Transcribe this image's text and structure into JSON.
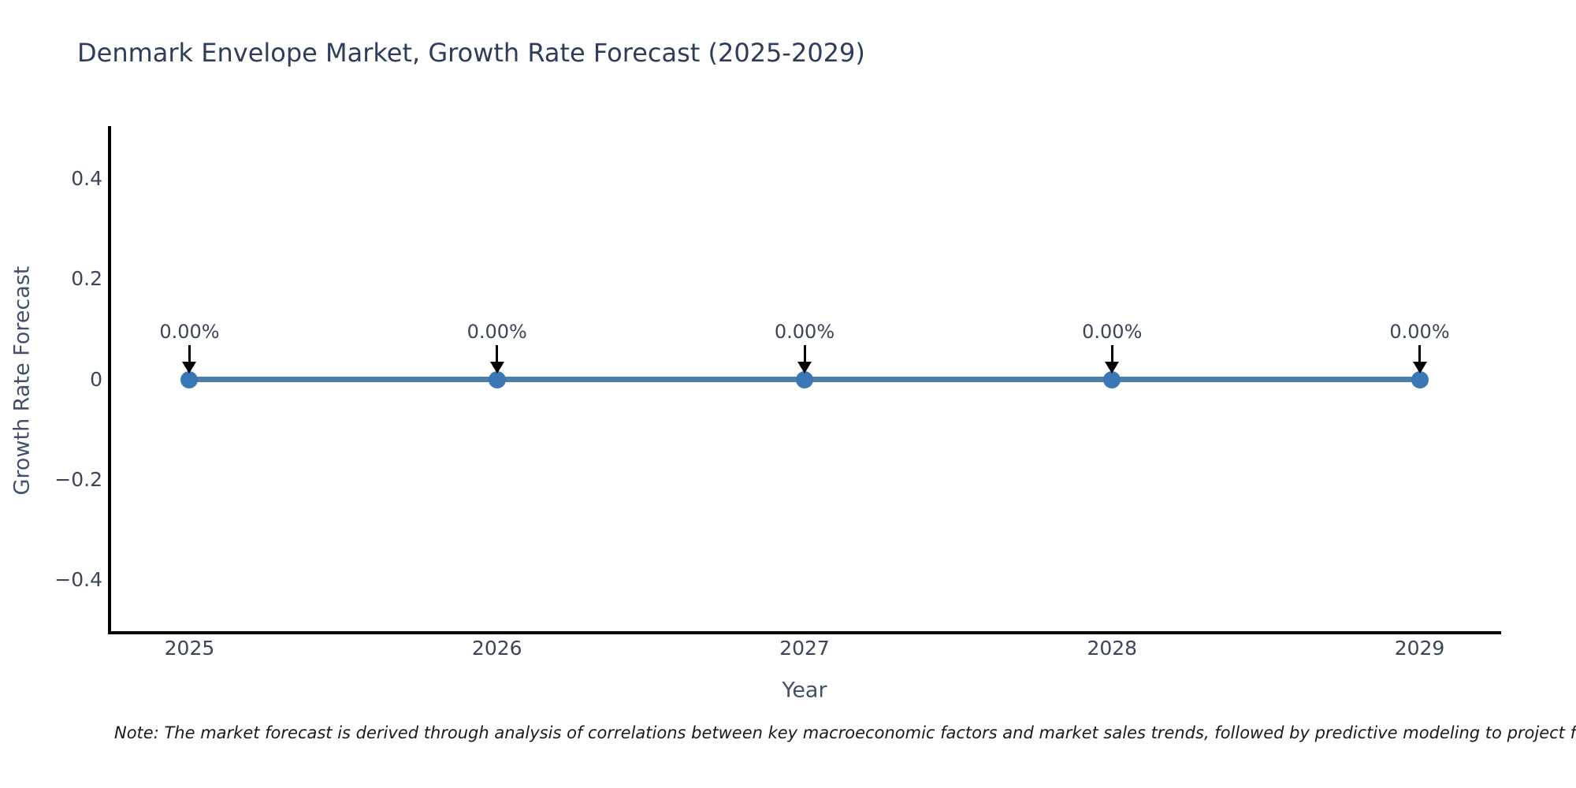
{
  "note": {
    "text": "Note: The market forecast is derived through analysis of correlations between key macroeconomic factors and market sales trends, followed by predictive modeling to project future sales"
  },
  "chart_data": {
    "type": "line",
    "title": "Denmark Envelope Market, Growth Rate Forecast (2025-2029)",
    "xlabel": "Year",
    "ylabel": "Growth Rate Forecast",
    "categories": [
      "2025",
      "2026",
      "2027",
      "2028",
      "2029"
    ],
    "x": [
      2025,
      2026,
      2027,
      2028,
      2029
    ],
    "values": [
      0,
      0,
      0,
      0,
      0
    ],
    "point_labels": [
      "0.00%",
      "0.00%",
      "0.00%",
      "0.00%",
      "0.00%"
    ],
    "yticks": [
      {
        "value": 0.4,
        "label": "0.4"
      },
      {
        "value": 0.2,
        "label": "0.2"
      },
      {
        "value": 0,
        "label": "0"
      },
      {
        "value": -0.2,
        "label": "−0.2"
      },
      {
        "value": -0.4,
        "label": "−0.4"
      }
    ],
    "xlim": [
      2024.74,
      2029.26
    ],
    "ylim": [
      -0.505,
      0.505
    ],
    "grid": false,
    "legend": false,
    "annotation_style": "black-down-arrow",
    "colors": {
      "line": "#4d7ea8",
      "marker": "#3a78b5",
      "arrow": "#000000",
      "title": "#2e3d59",
      "axis": "#42506b",
      "tick": "#3b4559",
      "note": "#1a1a1a"
    }
  }
}
